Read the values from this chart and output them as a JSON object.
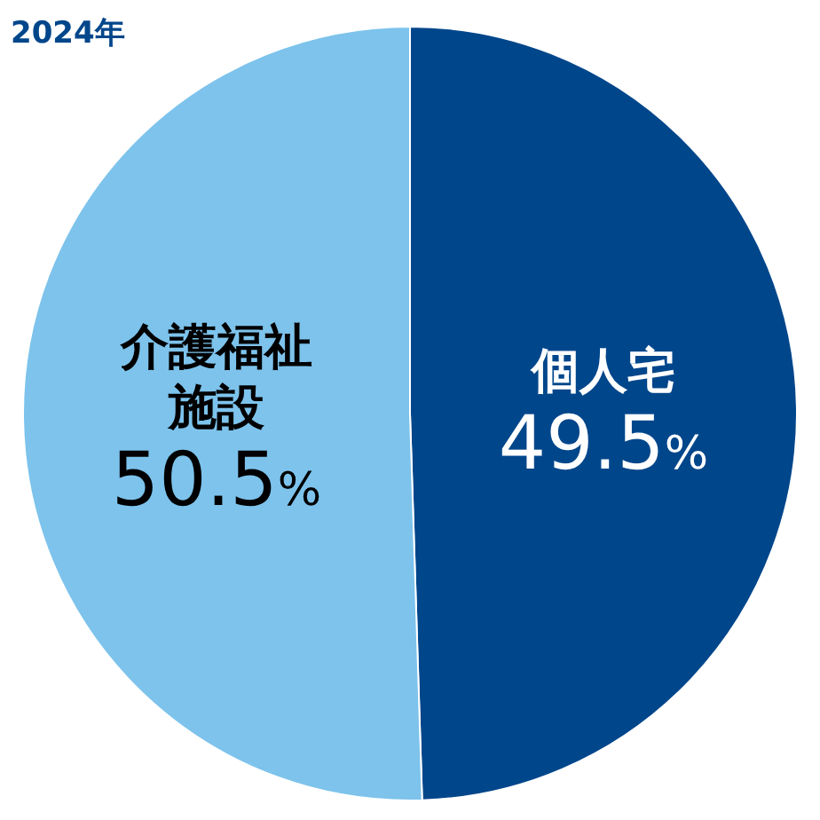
{
  "chart_data": {
    "type": "pie",
    "title": "2024年",
    "categories": [
      "個人宅",
      "介護福祉施設"
    ],
    "values": [
      49.5,
      50.5
    ],
    "colors": [
      "#00468b",
      "#7dc3ec"
    ],
    "value_labels": [
      "49.5%",
      "50.5%"
    ]
  }
}
